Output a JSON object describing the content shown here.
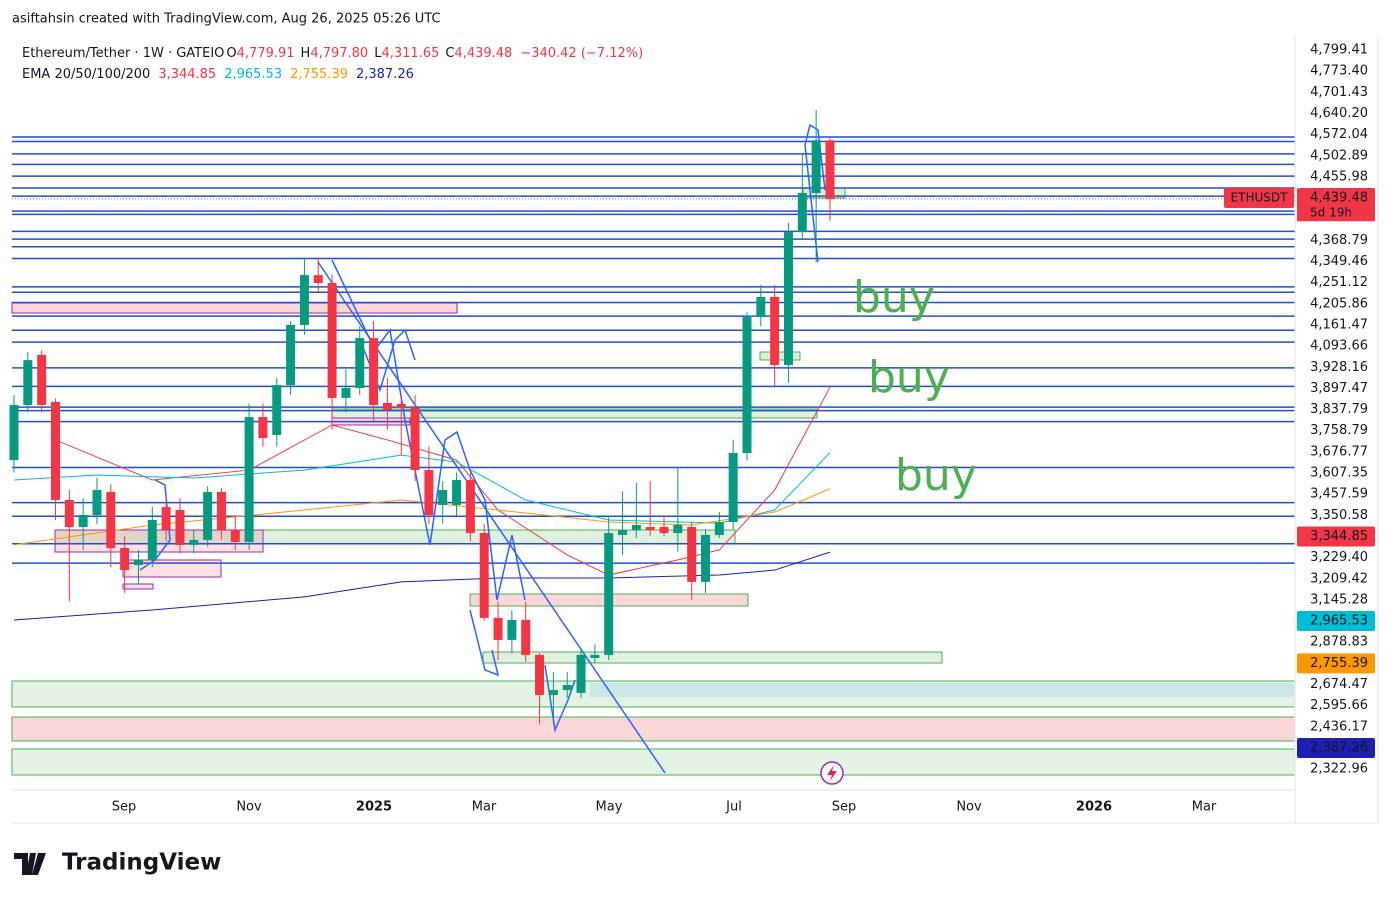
{
  "top_note": "asiftahsin created with TradingView.com, Aug 26, 2025 05:26 UTC",
  "brand": "TradingView",
  "chart_data": {
    "type": "candlestick",
    "header": {
      "symbol": "Ethereum/Tether · 1W · GATEIO",
      "ohlc": [
        {
          "key": "O",
          "label": "4,779.91"
        },
        {
          "key": "H",
          "label": "4,797.80"
        },
        {
          "key": "L",
          "label": "4,311.65"
        },
        {
          "key": "C",
          "label": "4,439.48"
        }
      ],
      "change": "−340.42 (−7.12%)",
      "ema_label": "EMA 20/50/100/200"
    },
    "up_color": "#089981",
    "down_color": "#f23645",
    "ylim": [
      1005,
      5392
    ],
    "xticks": [
      "Sep",
      "Nov",
      "2025",
      "Mar",
      "May",
      "Jul",
      "Sep",
      "Nov",
      "2026",
      "Mar"
    ],
    "candles": [
      {
        "o": 2922,
        "h": 3300,
        "l": 2850,
        "c": 3242
      },
      {
        "o": 3242,
        "h": 3550,
        "l": 3200,
        "c": 3503
      },
      {
        "o": 3533,
        "h": 3560,
        "l": 3200,
        "c": 3242
      },
      {
        "o": 3260,
        "h": 3280,
        "l": 2574,
        "c": 2690
      },
      {
        "o": 2690,
        "h": 2750,
        "l": 2100,
        "c": 2533
      },
      {
        "o": 2533,
        "h": 2700,
        "l": 2400,
        "c": 2603
      },
      {
        "o": 2603,
        "h": 2820,
        "l": 2550,
        "c": 2748
      },
      {
        "o": 2737,
        "h": 2780,
        "l": 2300,
        "c": 2411
      },
      {
        "o": 2411,
        "h": 2480,
        "l": 2150,
        "c": 2283
      },
      {
        "o": 2312,
        "h": 2400,
        "l": 2200,
        "c": 2342
      },
      {
        "o": 2342,
        "h": 2650,
        "l": 2300,
        "c": 2574
      },
      {
        "o": 2649,
        "h": 2720,
        "l": 2450,
        "c": 2516
      },
      {
        "o": 2632,
        "h": 2700,
        "l": 2380,
        "c": 2429
      },
      {
        "o": 2429,
        "h": 2520,
        "l": 2380,
        "c": 2458
      },
      {
        "o": 2458,
        "h": 2770,
        "l": 2420,
        "c": 2737
      },
      {
        "o": 2737,
        "h": 2760,
        "l": 2460,
        "c": 2516
      },
      {
        "o": 2516,
        "h": 2600,
        "l": 2400,
        "c": 2446
      },
      {
        "o": 2446,
        "h": 3250,
        "l": 2400,
        "c": 3172
      },
      {
        "o": 3172,
        "h": 3250,
        "l": 3000,
        "c": 3050
      },
      {
        "o": 3068,
        "h": 3400,
        "l": 3000,
        "c": 3358
      },
      {
        "o": 3358,
        "h": 3730,
        "l": 3300,
        "c": 3707
      },
      {
        "o": 3707,
        "h": 4090,
        "l": 3650,
        "c": 3997
      },
      {
        "o": 3997,
        "h": 4100,
        "l": 3900,
        "c": 3951
      },
      {
        "o": 3951,
        "h": 4000,
        "l": 3100,
        "c": 3283
      },
      {
        "o": 3283,
        "h": 3450,
        "l": 3200,
        "c": 3341
      },
      {
        "o": 3341,
        "h": 3700,
        "l": 3300,
        "c": 3631
      },
      {
        "o": 3631,
        "h": 3730,
        "l": 3150,
        "c": 3242
      },
      {
        "o": 3254,
        "h": 3400,
        "l": 3100,
        "c": 3213
      },
      {
        "o": 3248,
        "h": 3300,
        "l": 2950,
        "c": 3225
      },
      {
        "o": 3225,
        "h": 3300,
        "l": 2800,
        "c": 2864
      },
      {
        "o": 2864,
        "h": 3000,
        "l": 2550,
        "c": 2603
      },
      {
        "o": 2661,
        "h": 2800,
        "l": 2550,
        "c": 2748
      },
      {
        "o": 2661,
        "h": 2850,
        "l": 2600,
        "c": 2806
      },
      {
        "o": 2806,
        "h": 2850,
        "l": 2450,
        "c": 2498
      },
      {
        "o": 2498,
        "h": 2550,
        "l": 1990,
        "c": 2005
      },
      {
        "o": 2005,
        "h": 2100,
        "l": 1760,
        "c": 1877
      },
      {
        "o": 1877,
        "h": 2050,
        "l": 1800,
        "c": 1993
      },
      {
        "o": 1993,
        "h": 2100,
        "l": 1750,
        "c": 1790
      },
      {
        "o": 1790,
        "h": 1800,
        "l": 1385,
        "c": 1557
      },
      {
        "o": 1557,
        "h": 1690,
        "l": 1390,
        "c": 1586
      },
      {
        "o": 1586,
        "h": 1690,
        "l": 1540,
        "c": 1615
      },
      {
        "o": 1569,
        "h": 1830,
        "l": 1540,
        "c": 1790
      },
      {
        "o": 1772,
        "h": 1850,
        "l": 1740,
        "c": 1790
      },
      {
        "o": 1790,
        "h": 2600,
        "l": 1760,
        "c": 2498
      },
      {
        "o": 2487,
        "h": 2740,
        "l": 2370,
        "c": 2516
      },
      {
        "o": 2516,
        "h": 2790,
        "l": 2470,
        "c": 2545
      },
      {
        "o": 2533,
        "h": 2800,
        "l": 2480,
        "c": 2516
      },
      {
        "o": 2533,
        "h": 2600,
        "l": 2480,
        "c": 2498
      },
      {
        "o": 2498,
        "h": 2880,
        "l": 2390,
        "c": 2545
      },
      {
        "o": 2533,
        "h": 2560,
        "l": 2110,
        "c": 2214
      },
      {
        "o": 2214,
        "h": 2520,
        "l": 2150,
        "c": 2487
      },
      {
        "o": 2487,
        "h": 2620,
        "l": 2470,
        "c": 2562
      },
      {
        "o": 2562,
        "h": 3040,
        "l": 2520,
        "c": 2963
      },
      {
        "o": 2963,
        "h": 3780,
        "l": 2920,
        "c": 3753
      },
      {
        "o": 3753,
        "h": 3940,
        "l": 3700,
        "c": 3870
      },
      {
        "o": 3870,
        "h": 3940,
        "l": 3350,
        "c": 3474
      },
      {
        "o": 3474,
        "h": 4300,
        "l": 3370,
        "c": 4247
      },
      {
        "o": 4247,
        "h": 4700,
        "l": 4200,
        "c": 4474
      },
      {
        "o": 4474,
        "h": 4956,
        "l": 4073,
        "c": 4780
      },
      {
        "o": 4779.91,
        "h": 4797.8,
        "l": 4311.65,
        "c": 4439.48
      }
    ],
    "ema": [
      {
        "color": "#f23645",
        "label": "3,344.85",
        "x": [
          3,
          10,
          17,
          23,
          27,
          32,
          35,
          40,
          43,
          48,
          51,
          55,
          59
        ],
        "values": [
          3039,
          2806,
          2864,
          3126,
          3039,
          2922,
          2632,
          2371,
          2254,
          2342,
          2400,
          2748,
          3344.85
        ]
      },
      {
        "color": "#00bcd4",
        "label": "2,965.53",
        "x": [
          0,
          6,
          13,
          21,
          28,
          32,
          37,
          43,
          51,
          55,
          59
        ],
        "values": [
          2806,
          2835,
          2818,
          2864,
          2951,
          2911,
          2690,
          2574,
          2556,
          2632,
          2965.53
        ]
      },
      {
        "color": "#ff9800",
        "label": "2,755.39",
        "x": [
          0,
          10,
          21,
          28,
          35,
          43,
          49,
          55,
          59
        ],
        "values": [
          2429,
          2545,
          2632,
          2690,
          2632,
          2562,
          2545,
          2620,
          2755.39
        ]
      },
      {
        "color": "#1e1eb0",
        "label": "2,387.26",
        "x": [
          0,
          10,
          21,
          28,
          35,
          43,
          51,
          55,
          59
        ],
        "values": [
          1993,
          2051,
          2127,
          2214,
          2237,
          2237,
          2254,
          2283,
          2387.26
        ]
      }
    ],
    "level_color": "#1f4fd8",
    "price_labels": [
      {
        "value": 4799.41,
        "label": "4,799.41"
      },
      {
        "value": 4773.4,
        "label": "4,773.40"
      },
      {
        "value": 4701.43,
        "label": "4,701.43"
      },
      {
        "value": 4640.2,
        "label": "4,640.20"
      },
      {
        "value": 4572.04,
        "label": "4,572.04"
      },
      {
        "value": 4502.89,
        "label": "4,502.89"
      },
      {
        "value": 4455.98,
        "label": "4,455.98"
      },
      {
        "value": 4439.48,
        "label": "4,439.48",
        "color": "#f23645",
        "tag": "ETHUSDT",
        "countdown": "5d 19h"
      },
      {
        "value": 4368.79,
        "label": "4,368.79"
      },
      {
        "value": 4349.46,
        "label": "4,349.46"
      },
      {
        "value": 4251.12,
        "label": "4,251.12"
      },
      {
        "value": 4205.86,
        "label": "4,205.86"
      },
      {
        "value": 4161.47,
        "label": "4,161.47"
      },
      {
        "value": 4093.66,
        "label": "4,093.66"
      },
      {
        "value": 3928.16,
        "label": "3,928.16"
      },
      {
        "value": 3897.47,
        "label": "3,897.47"
      },
      {
        "value": 3837.79,
        "label": "3,837.79"
      },
      {
        "value": 3758.79,
        "label": "3,758.79"
      },
      {
        "value": 3676.77,
        "label": "3,676.77"
      },
      {
        "value": 3607.35,
        "label": "3,607.35"
      },
      {
        "value": 3457.59,
        "label": "3,457.59"
      },
      {
        "value": 3350.58,
        "label": "3,350.58"
      },
      {
        "value": 3344.85,
        "label": "3,344.85",
        "color": "#f23645"
      },
      {
        "value": 3229.4,
        "label": "3,229.40"
      },
      {
        "value": 3209.42,
        "label": "3,209.42"
      },
      {
        "value": 3145.28,
        "label": "3,145.28"
      },
      {
        "value": 2965.53,
        "label": "2,965.53",
        "color": "#00bcd4"
      },
      {
        "value": 2878.83,
        "label": "2,878.83"
      },
      {
        "value": 2755.39,
        "label": "2,755.39",
        "color": "#ff9800"
      },
      {
        "value": 2674.47,
        "label": "2,674.47"
      },
      {
        "value": 2595.66,
        "label": "2,595.66"
      },
      {
        "value": 2436.17,
        "label": "2,436.17"
      },
      {
        "value": 2387.26,
        "label": "2,387.26",
        "color": "#1e1eb0"
      },
      {
        "value": 2322.96,
        "label": "2,322.96"
      }
    ],
    "annotations": [
      "buy",
      "buy",
      "buy"
    ]
  }
}
